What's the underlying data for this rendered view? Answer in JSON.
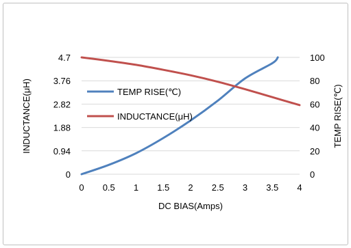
{
  "chart_data": {
    "type": "line",
    "x": [
      0,
      0.5,
      1,
      1.5,
      2,
      2.5,
      3,
      3.5,
      4
    ],
    "xlabel": "DC  BIAS(Amps)",
    "xlim": [
      0,
      4
    ],
    "x_tick_labels": [
      "0",
      "0.5",
      "1",
      "1.5",
      "2",
      "2.5",
      "3",
      "3.5",
      "4"
    ],
    "ylabel_left": "INDUCTANCE(μH)",
    "ylim_left": [
      0,
      4.7
    ],
    "y_left_tick_labels": [
      "0",
      "0.94",
      "1.88",
      "2.82",
      "3.76",
      "4.7"
    ],
    "ylabel_right": "TEMP RISE(℃)",
    "ylim_right": [
      0,
      100
    ],
    "y_right_tick_labels": [
      "0",
      "20",
      "40",
      "60",
      "80",
      "100"
    ],
    "grid": "horizontal",
    "legend_position": "left-middle",
    "series": [
      {
        "name": "TEMP RISE(℃)",
        "axis": "right",
        "color": "#4f81bd",
        "x": [
          0,
          0.5,
          1,
          1.5,
          2,
          2.5,
          3,
          3.5,
          3.6
        ],
        "values": [
          0,
          8,
          18,
          31,
          46,
          63,
          82,
          95,
          100
        ]
      },
      {
        "name": "INDUCTANCE(μH)",
        "axis": "left",
        "color": "#c0504d",
        "x": [
          0,
          0.5,
          1,
          1.5,
          2,
          2.5,
          3,
          3.5,
          4
        ],
        "values": [
          4.7,
          4.56,
          4.4,
          4.2,
          3.98,
          3.72,
          3.42,
          3.1,
          2.78
        ]
      }
    ]
  }
}
